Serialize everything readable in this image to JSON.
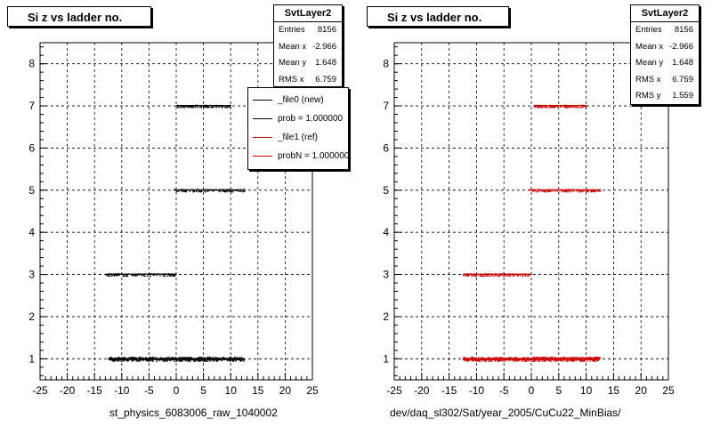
{
  "panels": [
    {
      "title": "Si z vs ladder no.",
      "xlabel": "st_physics_6083006_raw_1040002",
      "stats": {
        "name": "SvtLayer2",
        "rows": [
          {
            "label": "Entries",
            "value": "8156"
          },
          {
            "label": "Mean x",
            "value": "-2.966"
          },
          {
            "label": "Mean y",
            "value": "1.648"
          },
          {
            "label": "RMS x",
            "value": "6.759"
          }
        ]
      },
      "legend": [
        {
          "label": "_file0 (new)",
          "color": "#000000"
        },
        {
          "label": "prob = 1.000000",
          "color": "#000000"
        },
        {
          "label": "_file1 (ref)",
          "color": "#cc0000"
        },
        {
          "label": "probN = 1.000000",
          "color": "#cc0000"
        }
      ]
    },
    {
      "title": "Si z vs ladder no.",
      "xlabel": "dev/daq_sl302/Sat/year_2005/CuCu22_MinBias/",
      "stats": {
        "name": "SvtLayer2",
        "rows": [
          {
            "label": "Entries",
            "value": "8156"
          },
          {
            "label": "Mean x",
            "value": "-2.966"
          },
          {
            "label": "Mean y",
            "value": "1.648"
          },
          {
            "label": "RMS x",
            "value": "6.759"
          },
          {
            "label": "RMS y",
            "value": "1.559"
          }
        ]
      }
    }
  ],
  "chart_data": [
    {
      "type": "scatter",
      "title": "Si z vs ladder no.",
      "xlabel": "st_physics_6083006_raw_1040002",
      "ylabel": "",
      "xlim": [
        -25,
        25
      ],
      "ylim": [
        0.5,
        8.5
      ],
      "xticks": [
        -25,
        -20,
        -15,
        -10,
        -5,
        0,
        5,
        10,
        15,
        20,
        25
      ],
      "yticks": [
        1,
        2,
        3,
        4,
        5,
        6,
        7,
        8
      ],
      "grid": true,
      "legend_position": "top-right",
      "series": [
        {
          "name": "_file0 (new)",
          "color": "#000000",
          "bands": [
            {
              "y": 1,
              "xmin": -12.5,
              "xmax": 12.5
            },
            {
              "y": 3,
              "xmin": -13,
              "xmax": 0
            },
            {
              "y": 5,
              "xmin": -0.5,
              "xmax": 12.5
            },
            {
              "y": 7,
              "xmin": 0,
              "xmax": 10
            }
          ]
        }
      ]
    },
    {
      "type": "scatter",
      "title": "Si z vs ladder no.",
      "xlabel": "dev/daq_sl302/Sat/year_2005/CuCu22_MinBias/",
      "ylabel": "",
      "xlim": [
        -25,
        25
      ],
      "ylim": [
        0.5,
        8.5
      ],
      "xticks": [
        -25,
        -20,
        -15,
        -10,
        -5,
        0,
        5,
        10,
        15,
        20,
        25
      ],
      "yticks": [
        1,
        2,
        3,
        4,
        5,
        6,
        7,
        8
      ],
      "grid": true,
      "series": [
        {
          "name": "_file1 (ref)",
          "color": "#cc0000",
          "bands": [
            {
              "y": 1,
              "xmin": -12.5,
              "xmax": 12.5
            },
            {
              "y": 3,
              "xmin": -12.5,
              "xmax": 0
            },
            {
              "y": 5,
              "xmin": -0.5,
              "xmax": 12.5
            },
            {
              "y": 7,
              "xmin": 0.5,
              "xmax": 10
            }
          ]
        }
      ]
    }
  ]
}
